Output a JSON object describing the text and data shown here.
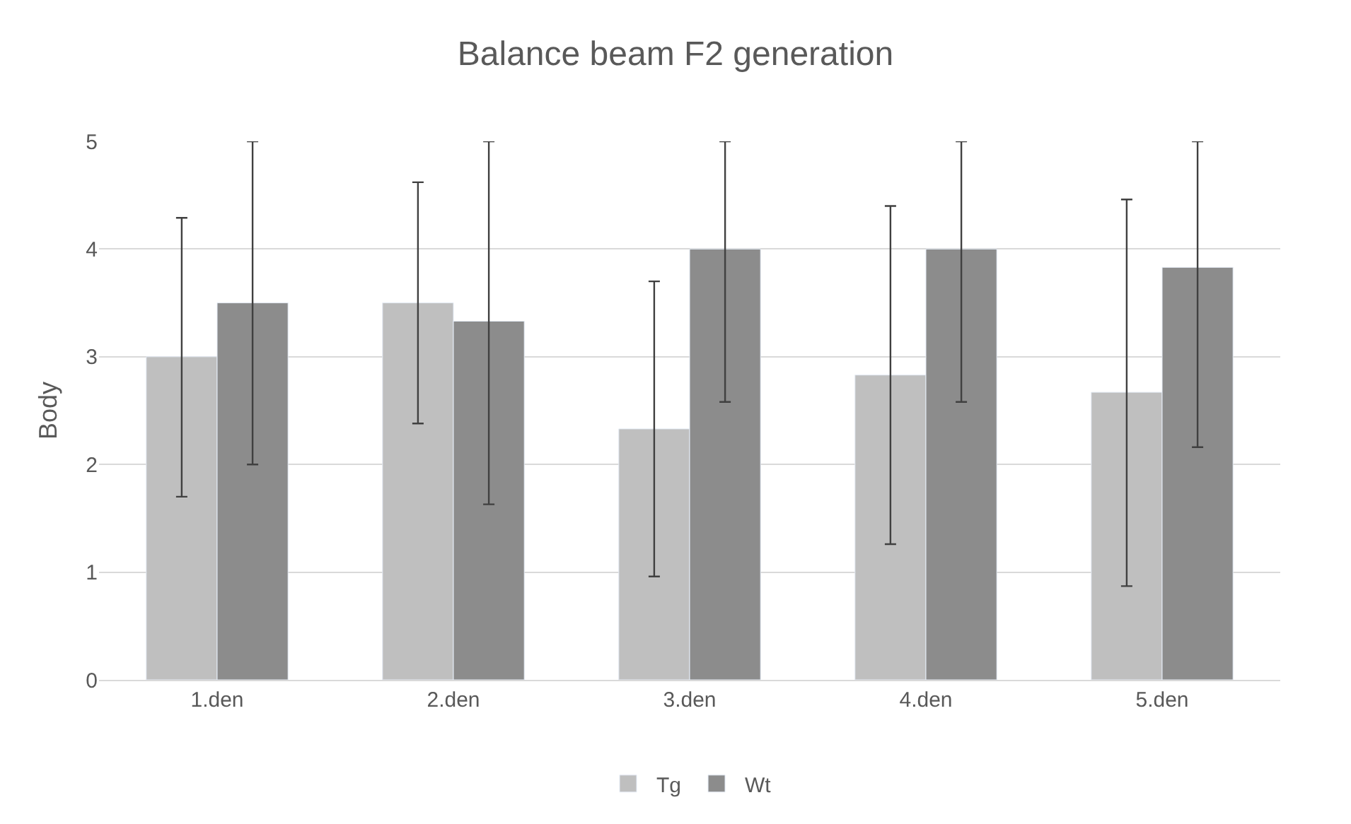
{
  "chart_data": {
    "type": "bar",
    "title": "Balance beam F2 generation",
    "ylabel": "Body",
    "categories": [
      "1.den",
      "2.den",
      "3.den",
      "4.den",
      "5.den"
    ],
    "series": [
      {
        "name": "Tg",
        "color": "#bfbfbf",
        "values": [
          3.0,
          3.5,
          2.33,
          2.83,
          2.67
        ],
        "errors": [
          [
            1.7,
            4.29
          ],
          [
            2.38,
            4.62
          ],
          [
            0.96,
            3.7
          ],
          [
            1.26,
            4.4
          ],
          [
            0.87,
            4.46
          ]
        ]
      },
      {
        "name": "Wt",
        "color": "#8c8c8c",
        "values": [
          3.5,
          3.33,
          4.0,
          4.0,
          3.83
        ],
        "errors": [
          [
            2.0,
            5.0
          ],
          [
            1.63,
            5.0
          ],
          [
            2.58,
            5.0
          ],
          [
            2.58,
            5.0
          ],
          [
            2.16,
            5.0
          ]
        ]
      }
    ],
    "ylim": [
      0,
      5
    ],
    "yticks": [
      0,
      1,
      2,
      3,
      4,
      5
    ],
    "grid": "y",
    "legend": "bottom"
  }
}
